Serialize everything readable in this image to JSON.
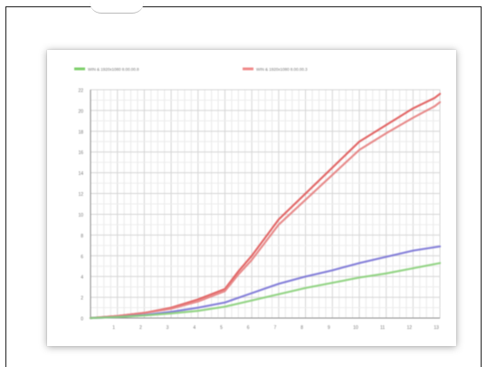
{
  "chart_data": {
    "type": "line",
    "title": "",
    "xlabel": "",
    "ylabel": "",
    "ylim": [
      0,
      22
    ],
    "y_ticks": [
      "0",
      "2",
      "4",
      "6",
      "8",
      "10",
      "12",
      "14",
      "16",
      "18",
      "20",
      "22"
    ],
    "x_ticks": [
      "1",
      "2",
      "3",
      "4",
      "5",
      "6",
      "7",
      "8",
      "9",
      "10",
      "11",
      "12",
      "13"
    ],
    "xlim": [
      0,
      13
    ],
    "grid": true,
    "legend_position": "top",
    "legend": [
      {
        "label": "WIN & 1920x1080 8.00.00.8",
        "color": "#7ccf6a"
      },
      {
        "label": "WIN & 1920x1080 8.00.00.3",
        "color": "#f08a8a"
      }
    ],
    "series": [
      {
        "color": "#e05a5a",
        "x": [
          0,
          1,
          2,
          3,
          4,
          5,
          5.5,
          6,
          7,
          8,
          9,
          10,
          11,
          12,
          12.8,
          13
        ],
        "y": [
          0,
          0.2,
          0.5,
          1.0,
          1.8,
          2.8,
          4.5,
          6.0,
          9.5,
          12.0,
          14.5,
          17.0,
          18.6,
          20.2,
          21.2,
          21.6
        ]
      },
      {
        "color": "#e58080",
        "x": [
          0,
          1,
          2,
          3,
          4,
          5,
          5.5,
          6,
          7,
          8,
          9,
          10,
          11,
          12,
          12.8,
          13
        ],
        "y": [
          0,
          0.2,
          0.5,
          0.9,
          1.6,
          2.6,
          4.2,
          5.6,
          9.0,
          11.4,
          13.8,
          16.2,
          17.8,
          19.3,
          20.4,
          20.8
        ]
      },
      {
        "color": "#7a74d6",
        "x": [
          0,
          1,
          2,
          3,
          4,
          5,
          6,
          7,
          8,
          9,
          10,
          11,
          12,
          13
        ],
        "y": [
          0,
          0.1,
          0.3,
          0.6,
          1.0,
          1.5,
          2.4,
          3.3,
          4.0,
          4.6,
          5.3,
          5.9,
          6.5,
          6.9
        ]
      },
      {
        "color": "#8ad07a",
        "x": [
          0,
          1,
          2,
          3,
          4,
          5,
          6,
          7,
          8,
          9,
          10,
          11,
          12,
          13
        ],
        "y": [
          0,
          0.1,
          0.25,
          0.45,
          0.7,
          1.1,
          1.7,
          2.3,
          2.9,
          3.4,
          3.9,
          4.3,
          4.8,
          5.3
        ]
      }
    ]
  }
}
